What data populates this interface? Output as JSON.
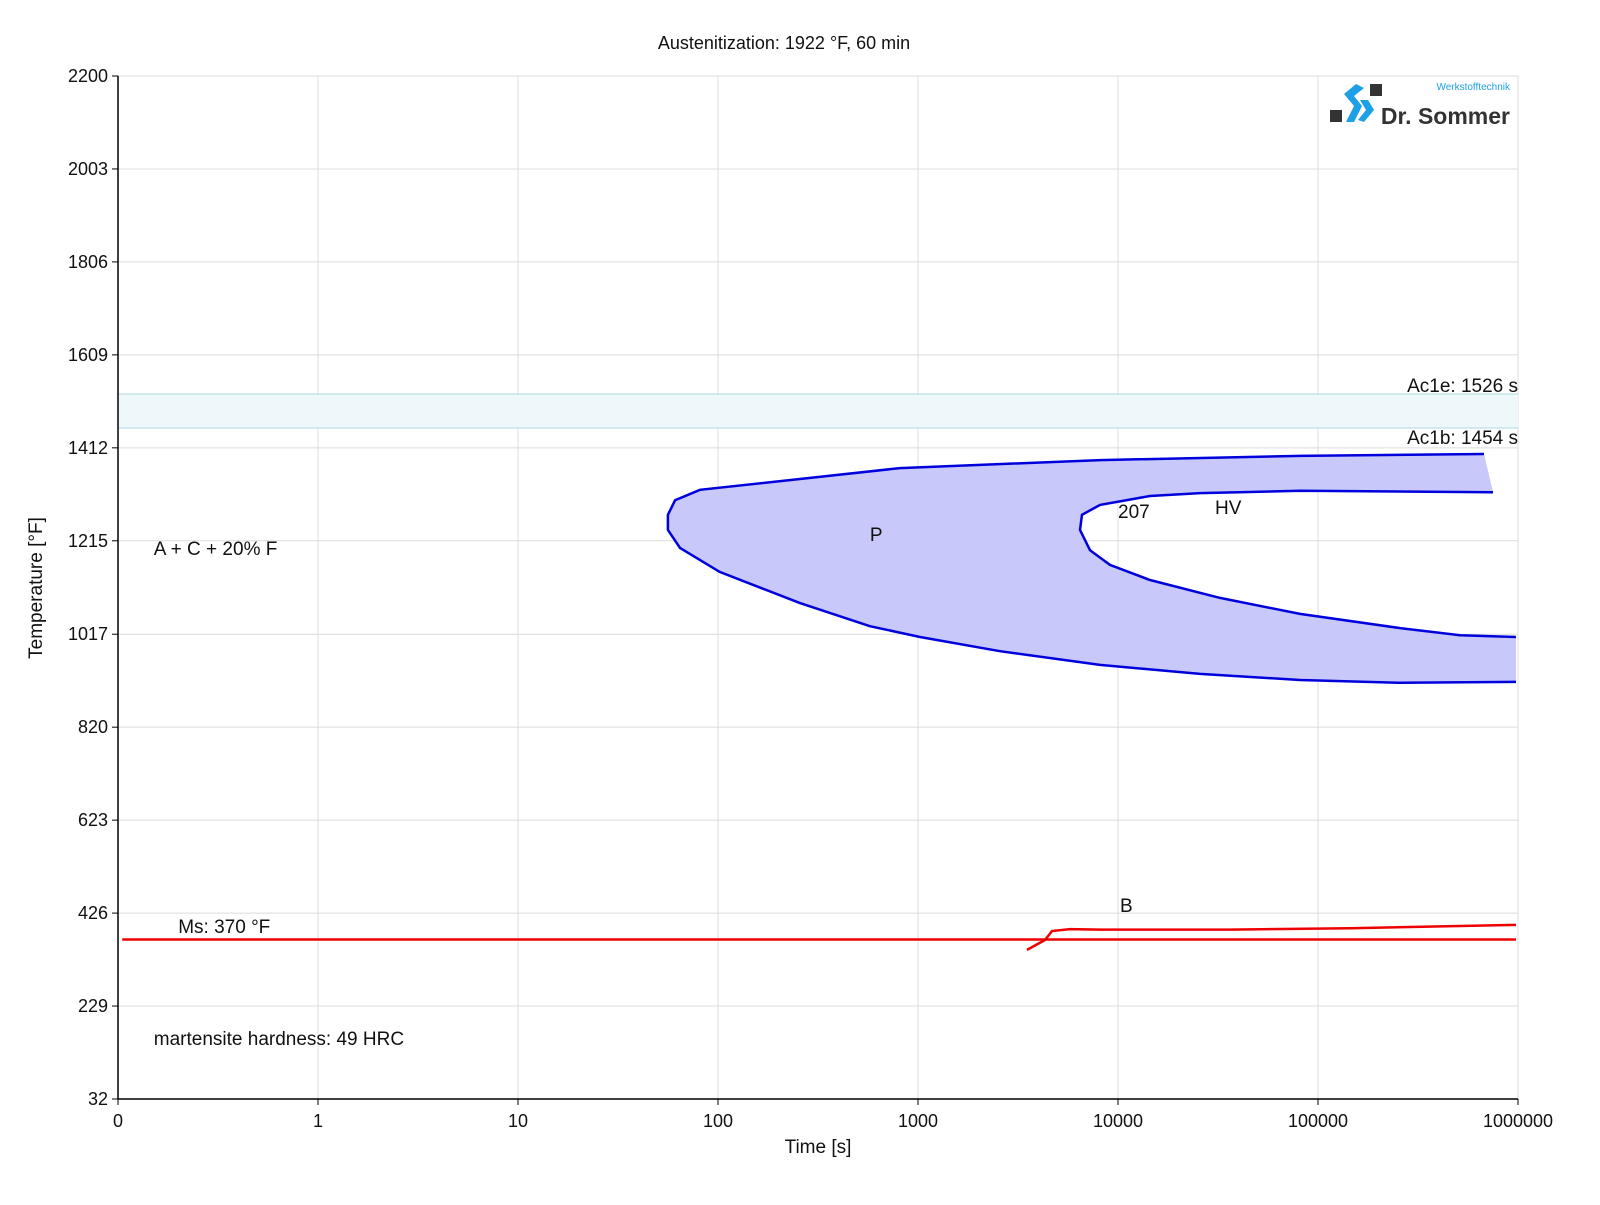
{
  "chart_data": {
    "type": "line",
    "title": "Austenitization: 1922 °F, 60 min",
    "xlabel": "Time [s]",
    "ylabel": "Temperature [°F]",
    "x_scale": "log",
    "xlim": [
      0.1,
      1000000
    ],
    "ylim": [
      32,
      2200
    ],
    "grid": true,
    "x_ticks": [
      {
        "value": 0.1,
        "label": "0"
      },
      {
        "value": 1,
        "label": "1"
      },
      {
        "value": 10,
        "label": "10"
      },
      {
        "value": 100,
        "label": "100"
      },
      {
        "value": 1000,
        "label": "1000"
      },
      {
        "value": 10000,
        "label": "10000"
      },
      {
        "value": 100000,
        "label": "100000"
      },
      {
        "value": 1000000,
        "label": "1000000"
      }
    ],
    "y_ticks": [
      32,
      229,
      426,
      623,
      820,
      1017,
      1215,
      1412,
      1609,
      1806,
      2003,
      2200
    ],
    "ac_band": {
      "ac1e": 1526,
      "ac1b": 1454,
      "ac1e_label": "Ac1e: 1526 s",
      "ac1b_label": "Ac1b: 1454 s",
      "color": "#add8e6"
    },
    "pearlite_region": {
      "name": "P",
      "color": "#0000dd",
      "fill": "#c8c8fa",
      "outer": [
        [
          676000,
          1399
        ],
        [
          81300,
          1395
        ],
        [
          8130,
          1386
        ],
        [
          813,
          1369
        ],
        [
          81.3,
          1323
        ],
        [
          61,
          1301
        ],
        [
          56.2,
          1270
        ],
        [
          56.2,
          1238
        ],
        [
          64.6,
          1200
        ],
        [
          102,
          1149
        ],
        [
          257,
          1083
        ],
        [
          575,
          1034
        ],
        [
          1023,
          1011
        ],
        [
          2570,
          981
        ],
        [
          8130,
          952
        ],
        [
          25700,
          933
        ],
        [
          81300,
          920
        ],
        [
          257000,
          914
        ],
        [
          977000,
          916
        ]
      ],
      "inner": [
        [
          750000,
          1318
        ],
        [
          81300,
          1321
        ],
        [
          25700,
          1316
        ],
        [
          14450,
          1310
        ],
        [
          8130,
          1291
        ],
        [
          6607,
          1270
        ],
        [
          6457,
          1238
        ],
        [
          7244,
          1195
        ],
        [
          9120,
          1164
        ],
        [
          14450,
          1132
        ],
        [
          32360,
          1094
        ],
        [
          81300,
          1060
        ],
        [
          257000,
          1030
        ],
        [
          512900,
          1015
        ],
        [
          977000,
          1011
        ]
      ]
    },
    "bainite_curve": {
      "name": "B",
      "color": "#ee0000",
      "points": [
        [
          3508,
          348
        ],
        [
          4315,
          369
        ],
        [
          4677,
          388
        ],
        [
          5754,
          392
        ],
        [
          8130,
          391
        ],
        [
          36300,
          391
        ],
        [
          144500,
          394
        ],
        [
          977000,
          401
        ]
      ]
    },
    "ms_line": {
      "value": 370,
      "x_range": [
        0.105,
        977000
      ],
      "color": "#ee0000"
    },
    "annotations": [
      {
        "text": "P",
        "x": 575,
        "y": 1229
      },
      {
        "text": "207",
        "x": 10000,
        "y": 1278
      },
      {
        "text": "HV",
        "x": 30550,
        "y": 1287
      },
      {
        "text": "B",
        "x": 10230,
        "y": 443
      },
      {
        "text": "A + C + 20% F",
        "x": 0.151,
        "y": 1200
      },
      {
        "text": "Ms: 370 °F",
        "x": 0.2,
        "y": 399
      },
      {
        "text": "martensite hardness: 49 HRC",
        "x": 0.151,
        "y": 161
      }
    ]
  },
  "logo": {
    "name": "Dr. Sommer",
    "subtitle": "Werkstofftechnik",
    "colors": {
      "blue": "#1ea0e6",
      "dark": "#333333"
    }
  }
}
